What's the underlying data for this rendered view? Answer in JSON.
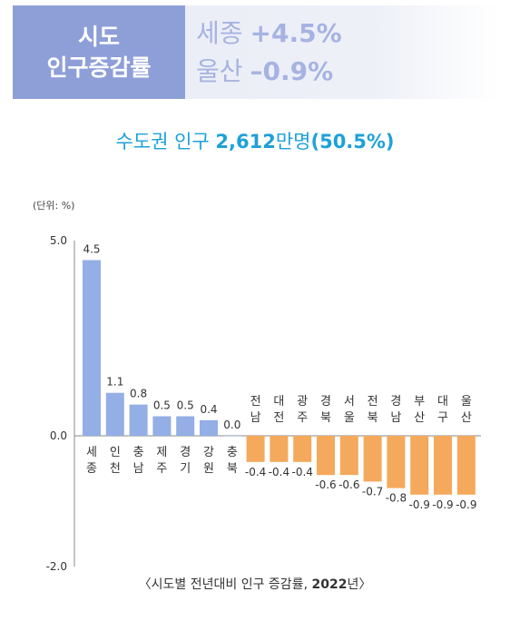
{
  "header": {
    "title_line1": "시도",
    "title_line2": "인구증감률",
    "top_label": "세종",
    "top_value": "+4.5%",
    "bottom_label": "울산",
    "bottom_value": "–0.9%"
  },
  "subtitle": {
    "prefix": "수도권 인구 ",
    "number": "2,612",
    "unit": "만명",
    "pct": "(50.5%)"
  },
  "unit_label": "(단위: %)",
  "caption": {
    "open": "〈시도별 전년대비 인구 증감률, ",
    "year": "2022",
    "close": "년〉"
  },
  "colors": {
    "positive": "#94aee6",
    "negative": "#f4a95c",
    "header_bg": "#8e9fd8",
    "subtitle": "#1da1d8"
  },
  "chart_data": {
    "type": "bar",
    "categories": [
      "세종",
      "인천",
      "충남",
      "제주",
      "경기",
      "강원",
      "충북",
      "전남",
      "대전",
      "광주",
      "경북",
      "서울",
      "전북",
      "경남",
      "부산",
      "대구",
      "울산"
    ],
    "values": [
      4.5,
      1.1,
      0.8,
      0.5,
      0.5,
      0.4,
      0.0,
      -0.4,
      -0.4,
      -0.4,
      -0.6,
      -0.6,
      -0.7,
      -0.8,
      -0.9,
      -0.9,
      -0.9
    ],
    "value_labels": [
      "4.5",
      "1.1",
      "0.8",
      "0.5",
      "0.5",
      "0.4",
      "0.0",
      "-0.4",
      "-0.4",
      "-0.4",
      "-0.6",
      "-0.6",
      "-0.7",
      "-0.8",
      "-0.9",
      "-0.9",
      "-0.9"
    ],
    "ylim": [
      -2.0,
      5.0
    ],
    "yticks": [
      "5.0",
      "0.0",
      "-2.0"
    ],
    "ytick_values": [
      5.0,
      0.0,
      -2.0
    ]
  }
}
